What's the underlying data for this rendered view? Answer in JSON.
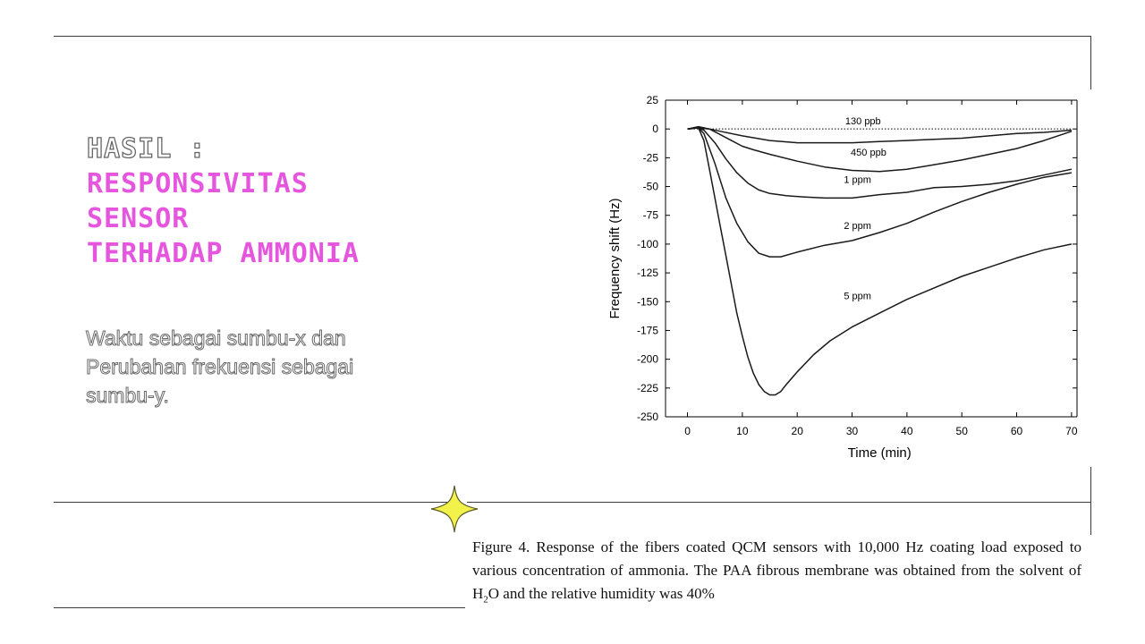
{
  "title": {
    "line1": "HASIL :",
    "line2": "RESPONSIVITAS",
    "line3": "SENSOR",
    "line4": "TERHADAP AMMONIA"
  },
  "description": {
    "line1": "Waktu sebagai sumbu-x dan",
    "line2": "Perubahan frekuensi sebagai",
    "line3": "sumbu-y."
  },
  "caption": {
    "label": "Figure 4.",
    "text_before_formula": "Response of the fibers coated QCM sensors with 10,000 Hz coating load exposed to various concentration of ammonia. The PAA fibrous membrane was obtained from the solvent of H",
    "subscript": "2",
    "text_after_formula": "O and the relative humidity was 40%"
  },
  "colors": {
    "accent": "#e655de",
    "star": "#f2f24a"
  },
  "icons": {
    "decoration": "four-point-star-icon"
  },
  "chart_data": {
    "type": "line",
    "title": "",
    "xlabel": "Time (min)",
    "ylabel": "Frequency shift (Hz)",
    "xlim": [
      -4,
      71
    ],
    "ylim": [
      -250,
      25
    ],
    "xticks": [
      0,
      10,
      20,
      30,
      40,
      50,
      60,
      70
    ],
    "yticks": [
      25,
      0,
      -25,
      -50,
      -75,
      -100,
      -125,
      -150,
      -175,
      -200,
      -225,
      -250
    ],
    "grid": false,
    "baseline": {
      "y": 0,
      "x": [
        0,
        70
      ],
      "style": "dotted"
    },
    "series": [
      {
        "name": "130 ppb",
        "label_at": [
          32,
          4
        ],
        "x": [
          0,
          2,
          4,
          6,
          10,
          15,
          20,
          25,
          30,
          35,
          40,
          45,
          50,
          55,
          60,
          65,
          70
        ],
        "y": [
          0,
          1,
          0,
          -2,
          -6,
          -10,
          -12,
          -12,
          -12,
          -11,
          -10,
          -9,
          -8,
          -6,
          -4,
          -3,
          -1
        ]
      },
      {
        "name": "450 ppb",
        "label_at": [
          33,
          -23
        ],
        "x": [
          0,
          2,
          4,
          6,
          8,
          10,
          12,
          15,
          20,
          25,
          30,
          35,
          40,
          45,
          50,
          55,
          60,
          65,
          70
        ],
        "y": [
          0,
          2,
          0,
          -5,
          -10,
          -15,
          -18,
          -22,
          -28,
          -33,
          -36,
          -37,
          -35,
          -31,
          -27,
          -22,
          -17,
          -10,
          -2
        ]
      },
      {
        "name": "1 ppm",
        "label_at": [
          31,
          -47
        ],
        "x": [
          0,
          2,
          3,
          5,
          7,
          9,
          11,
          13,
          15,
          18,
          21,
          25,
          30,
          35,
          40,
          45,
          50,
          55,
          60,
          65,
          70
        ],
        "y": [
          0,
          1,
          -1,
          -12,
          -26,
          -38,
          -47,
          -53,
          -56,
          -58,
          -59,
          -60,
          -60,
          -57,
          -55,
          -51,
          -50,
          -48,
          -45,
          -40,
          -35
        ]
      },
      {
        "name": "2 ppm",
        "label_at": [
          31,
          -87
        ],
        "x": [
          0,
          2,
          3,
          5,
          7,
          9,
          11,
          13,
          15,
          17,
          20,
          25,
          30,
          35,
          40,
          45,
          50,
          55,
          60,
          65,
          70
        ],
        "y": [
          0,
          1,
          -4,
          -30,
          -60,
          -82,
          -98,
          -108,
          -111,
          -111,
          -107,
          -101,
          -97,
          -90,
          -82,
          -72,
          -63,
          -55,
          -48,
          -42,
          -38
        ]
      },
      {
        "name": "5 ppm",
        "label_at": [
          31,
          -148
        ],
        "x": [
          0,
          2,
          3,
          4,
          5,
          6,
          7,
          8,
          9,
          10,
          11,
          12,
          13,
          14,
          15,
          16,
          17,
          18,
          20,
          23,
          26,
          30,
          35,
          40,
          45,
          50,
          55,
          60,
          65,
          70
        ],
        "y": [
          0,
          1,
          -10,
          -35,
          -60,
          -85,
          -110,
          -135,
          -160,
          -180,
          -198,
          -212,
          -222,
          -228,
          -231,
          -231,
          -228,
          -222,
          -211,
          -196,
          -184,
          -172,
          -160,
          -148,
          -138,
          -128,
          -120,
          -112,
          -105,
          -100
        ]
      }
    ]
  }
}
